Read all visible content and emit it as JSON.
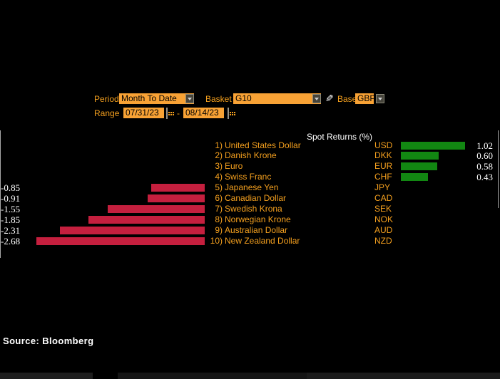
{
  "controls": {
    "period_label": "Period",
    "period_value": "Month To Date",
    "basket_label": "Basket",
    "basket_value": "G10",
    "base_label": "Base",
    "base_value": "GBP",
    "range_label": "Range",
    "range_start": "07/31/23",
    "range_separator": "-",
    "range_end": "08/14/23"
  },
  "chart_data": {
    "type": "bar",
    "orientation": "horizontal",
    "title": "Spot Returns (%)",
    "unit": "percent",
    "positive_color": "#128712",
    "negative_color": "#c51f3e",
    "value_text_color": "#ffffff",
    "label_color": "#f5a01e",
    "rows": [
      {
        "rank": "1)",
        "name": "United States Dollar",
        "code": "USD",
        "value": 1.02,
        "label": "1.02"
      },
      {
        "rank": "2)",
        "name": "Danish Krone",
        "code": "DKK",
        "value": 0.6,
        "label": "0.60"
      },
      {
        "rank": "3)",
        "name": "Euro",
        "code": "EUR",
        "value": 0.58,
        "label": "0.58"
      },
      {
        "rank": "4)",
        "name": "Swiss Franc",
        "code": "CHF",
        "value": 0.43,
        "label": "0.43"
      },
      {
        "rank": "5)",
        "name": "Japanese Yen",
        "code": "JPY",
        "value": -0.85,
        "label": "-0.85"
      },
      {
        "rank": "6)",
        "name": "Canadian Dollar",
        "code": "CAD",
        "value": -0.91,
        "label": "-0.91"
      },
      {
        "rank": "7)",
        "name": "Swedish Krona",
        "code": "SEK",
        "value": -1.55,
        "label": "-1.55"
      },
      {
        "rank": "8)",
        "name": "Norwegian Krone",
        "code": "NOK",
        "value": -1.85,
        "label": "-1.85"
      },
      {
        "rank": "9)",
        "name": "Australian Dollar",
        "code": "AUD",
        "value": -2.31,
        "label": "-2.31"
      },
      {
        "rank": "10)",
        "name": "New Zealand Dollar",
        "code": "NZD",
        "value": -2.68,
        "label": "-2.68"
      }
    ]
  },
  "footer": {
    "source": "Source: Bloomberg"
  }
}
